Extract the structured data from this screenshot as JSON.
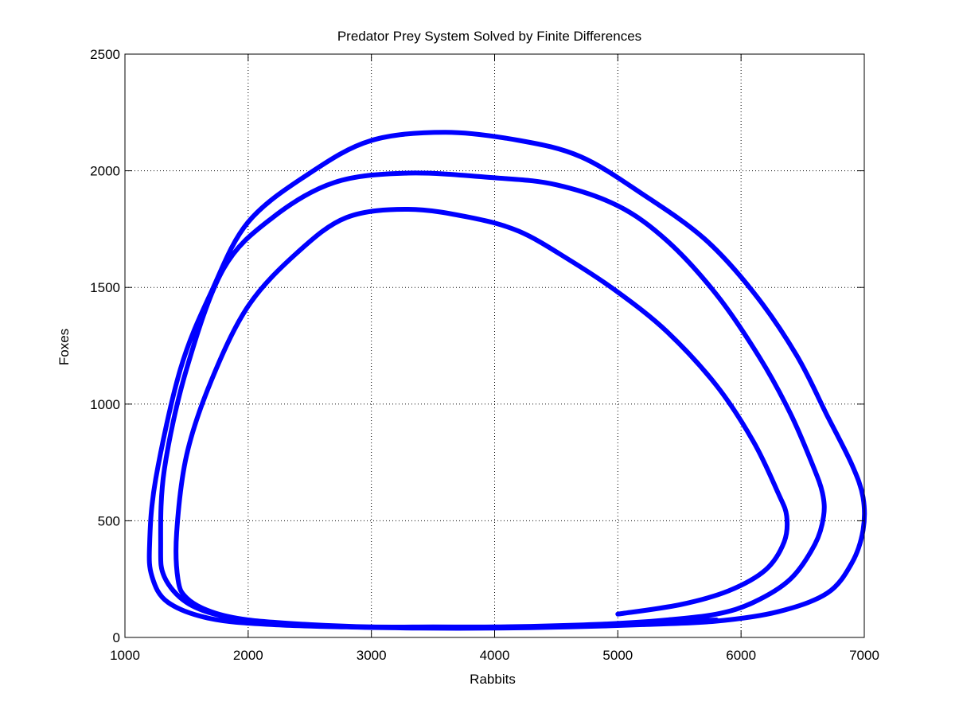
{
  "chart_data": {
    "type": "line",
    "title": "Predator Prey System Solved by Finite Differences",
    "xlabel": "Rabbits",
    "ylabel": "Foxes",
    "xlim": [
      1000,
      7000
    ],
    "ylim": [
      0,
      2500
    ],
    "xticks": [
      1000,
      2000,
      3000,
      4000,
      5000,
      6000,
      7000
    ],
    "yticks": [
      0,
      500,
      1000,
      1500,
      2000,
      2500
    ],
    "xtick_labels": [
      "1000",
      "2000",
      "3000",
      "4000",
      "5000",
      "6000",
      "7000"
    ],
    "ytick_labels": [
      "0",
      "500",
      "1000",
      "1500",
      "2000",
      "2500"
    ],
    "grid": true,
    "line_color": "#0000ff",
    "series": [
      {
        "x": [
          5000,
          5500,
          5900,
          6200,
          6350,
          6370,
          6300,
          6100,
          5800,
          5400,
          5000,
          4600,
          4200,
          3800,
          3300,
          2800,
          2400,
          2000,
          1700,
          1500,
          1420,
          1430,
          1500,
          1700,
          2000,
          2500,
          3000,
          3500,
          4000,
          4500,
          5000,
          5400,
          5800,
          6100,
          6400,
          6600,
          6670,
          6660,
          6580,
          6400,
          6150,
          5800,
          5400,
          5000,
          4500,
          4000,
          3300,
          2700,
          2200,
          1800,
          1500,
          1320,
          1290,
          1320,
          1500,
          1800,
          2200,
          2800,
          3400,
          4000,
          4600,
          5200,
          5800,
          6300,
          6700,
          6900,
          6990,
          6990,
          6900,
          6700,
          6450,
          6100,
          5700,
          5200,
          4700,
          4200,
          3600,
          3000,
          2500,
          2000,
          1700,
          1450,
          1250,
          1200,
          1220,
          1350,
          1700,
          2200,
          2800,
          3500,
          4200,
          4900,
          5400,
          5800
        ],
        "y": [
          100,
          140,
          200,
          290,
          410,
          520,
          620,
          840,
          1080,
          1310,
          1480,
          1620,
          1740,
          1800,
          1835,
          1800,
          1650,
          1420,
          1100,
          780,
          450,
          250,
          170,
          110,
          75,
          55,
          45,
          45,
          45,
          50,
          60,
          75,
          100,
          150,
          250,
          400,
          520,
          620,
          740,
          960,
          1200,
          1470,
          1700,
          1850,
          1940,
          1970,
          1990,
          1950,
          1800,
          1580,
          1150,
          720,
          400,
          260,
          150,
          90,
          60,
          45,
          40,
          40,
          45,
          55,
          70,
          110,
          190,
          320,
          460,
          600,
          740,
          950,
          1210,
          1480,
          1710,
          1900,
          2060,
          2130,
          2165,
          2130,
          1990,
          1780,
          1480,
          1150,
          680,
          400,
          260,
          150,
          80,
          55,
          45,
          40,
          45,
          55,
          65,
          75
        ]
      }
    ]
  }
}
